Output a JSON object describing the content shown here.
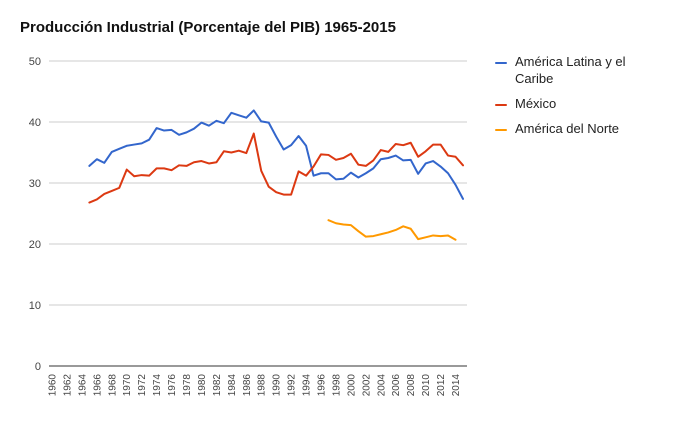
{
  "chart_data": {
    "type": "line",
    "title": "Producción Industrial (Porcentaje del PIB) 1965-2015",
    "xlabel": "",
    "ylabel": "",
    "ylim": [
      0,
      50
    ],
    "yticks": [
      "0",
      "10",
      "20",
      "30",
      "40",
      "50"
    ],
    "x": [
      1960,
      1961,
      1962,
      1963,
      1964,
      1965,
      1966,
      1967,
      1968,
      1969,
      1970,
      1971,
      1972,
      1973,
      1974,
      1975,
      1976,
      1977,
      1978,
      1979,
      1980,
      1981,
      1982,
      1983,
      1984,
      1985,
      1986,
      1987,
      1988,
      1989,
      1990,
      1991,
      1992,
      1993,
      1994,
      1995,
      1996,
      1997,
      1998,
      1999,
      2000,
      2001,
      2002,
      2003,
      2004,
      2005,
      2006,
      2007,
      2008,
      2009,
      2010,
      2011,
      2012,
      2013,
      2014,
      2015
    ],
    "xticks": [
      "1960",
      "1962",
      "1964",
      "1966",
      "1968",
      "1970",
      "1972",
      "1974",
      "1976",
      "1978",
      "1980",
      "1982",
      "1984",
      "1986",
      "1988",
      "1990",
      "1992",
      "1994",
      "1996",
      "1998",
      "2000",
      "2002",
      "2004",
      "2006",
      "2008",
      "2010",
      "2012",
      "2014"
    ],
    "legend_position": "right",
    "series": [
      {
        "name": "América Latina y el Caribe",
        "color": "#3366cc",
        "values": [
          null,
          null,
          null,
          null,
          null,
          32.8,
          33.9,
          33.3,
          35.1,
          35.6,
          36.1,
          36.3,
          36.5,
          37.1,
          39.0,
          38.6,
          38.7,
          37.9,
          38.3,
          38.9,
          39.9,
          39.4,
          40.2,
          39.8,
          41.5,
          41.1,
          40.7,
          41.9,
          40.1,
          39.9,
          37.6,
          35.5,
          36.2,
          37.7,
          36.1,
          31.2,
          31.6,
          31.6,
          30.6,
          30.7,
          31.7,
          30.9,
          31.6,
          32.4,
          33.9,
          34.1,
          34.5,
          33.7,
          33.8,
          31.5,
          33.2,
          33.6,
          32.7,
          31.6,
          29.7,
          27.4
        ]
      },
      {
        "name": "México",
        "color": "#dc3912",
        "values": [
          null,
          null,
          null,
          null,
          null,
          26.8,
          27.3,
          28.2,
          28.7,
          29.2,
          32.2,
          31.1,
          31.3,
          31.2,
          32.4,
          32.4,
          32.1,
          32.9,
          32.8,
          33.4,
          33.6,
          33.2,
          33.4,
          35.2,
          35.0,
          35.3,
          34.9,
          38.1,
          32.0,
          29.4,
          28.5,
          28.1,
          28.1,
          31.9,
          31.2,
          32.7,
          34.7,
          34.6,
          33.8,
          34.1,
          34.8,
          33.0,
          32.8,
          33.7,
          35.4,
          35.1,
          36.4,
          36.2,
          36.6,
          34.3,
          35.2,
          36.3,
          36.3,
          34.5,
          34.3,
          32.9
        ]
      },
      {
        "name": "América del Norte",
        "color": "#ff9900",
        "values": [
          null,
          null,
          null,
          null,
          null,
          null,
          null,
          null,
          null,
          null,
          null,
          null,
          null,
          null,
          null,
          null,
          null,
          null,
          null,
          null,
          null,
          null,
          null,
          null,
          null,
          null,
          null,
          null,
          null,
          null,
          null,
          null,
          null,
          null,
          null,
          null,
          null,
          23.9,
          23.4,
          23.2,
          23.1,
          22.1,
          21.2,
          21.3,
          21.6,
          21.9,
          22.3,
          22.9,
          22.5,
          20.8,
          21.1,
          21.4,
          21.3,
          21.4,
          20.7,
          null
        ]
      }
    ]
  }
}
